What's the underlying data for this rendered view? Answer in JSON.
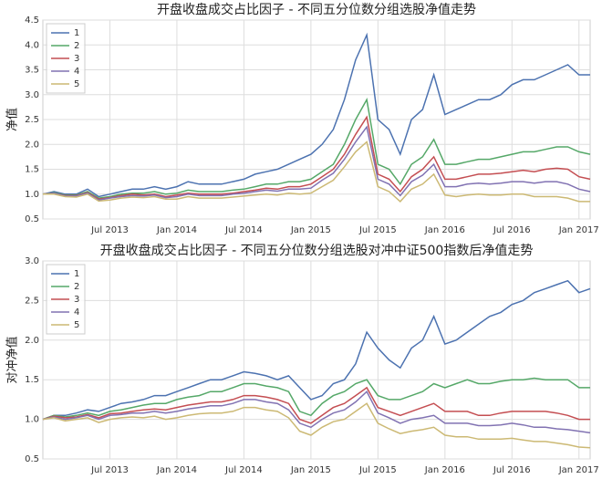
{
  "chart_data": [
    {
      "type": "line",
      "title": "开盘收盘成交占比因子 - 不同五分位数分组选股净值走势",
      "ylabel": "净值",
      "x": [
        "2013-01",
        "2013-02",
        "2013-03",
        "2013-04",
        "2013-05",
        "2013-06",
        "2013-07",
        "2013-08",
        "2013-09",
        "2013-10",
        "2013-11",
        "2013-12",
        "2014-01",
        "2014-02",
        "2014-03",
        "2014-04",
        "2014-05",
        "2014-06",
        "2014-07",
        "2014-08",
        "2014-09",
        "2014-10",
        "2014-11",
        "2014-12",
        "2015-01",
        "2015-02",
        "2015-03",
        "2015-04",
        "2015-05",
        "2015-06",
        "2015-07",
        "2015-08",
        "2015-09",
        "2015-10",
        "2015-11",
        "2015-12",
        "2016-01",
        "2016-02",
        "2016-03",
        "2016-04",
        "2016-05",
        "2016-06",
        "2016-07",
        "2016-08",
        "2016-09",
        "2016-10",
        "2016-11",
        "2016-12",
        "2017-01",
        "2017-02"
      ],
      "xlim": [
        "2013-01",
        "2017-02"
      ],
      "xticks": [
        {
          "value": "2013-07",
          "label": "Jul 2013"
        },
        {
          "value": "2014-01",
          "label": "Jan 2014"
        },
        {
          "value": "2014-07",
          "label": "Jul 2014"
        },
        {
          "value": "2015-01",
          "label": "Jan 2015"
        },
        {
          "value": "2015-07",
          "label": "Jul 2015"
        },
        {
          "value": "2016-01",
          "label": "Jan 2016"
        },
        {
          "value": "2016-07",
          "label": "Jul 2016"
        },
        {
          "value": "2017-01",
          "label": "Jan 2017"
        }
      ],
      "ylim": [
        0.5,
        4.5
      ],
      "yticks": [
        0.5,
        {
          "value": 1,
          "label": "1.0"
        },
        1.5,
        {
          "value": 2,
          "label": "2.0"
        },
        2.5,
        {
          "value": 3,
          "label": "3.0"
        },
        3.5,
        {
          "value": 4,
          "label": "4.0"
        },
        4.5
      ],
      "grid": true,
      "legend": "upper left",
      "series": [
        {
          "name": "1",
          "color": "#4c72b0",
          "values": [
            1.0,
            1.05,
            1.0,
            1.0,
            1.1,
            0.95,
            1.0,
            1.05,
            1.1,
            1.1,
            1.15,
            1.1,
            1.15,
            1.25,
            1.2,
            1.2,
            1.2,
            1.25,
            1.3,
            1.4,
            1.45,
            1.5,
            1.6,
            1.7,
            1.8,
            2.0,
            2.3,
            2.9,
            3.7,
            4.2,
            2.5,
            2.3,
            1.8,
            2.5,
            2.7,
            3.4,
            2.6,
            2.7,
            2.8,
            2.9,
            2.9,
            3.0,
            3.2,
            3.3,
            3.3,
            3.4,
            3.5,
            3.6,
            3.4,
            3.4
          ]
        },
        {
          "name": "2",
          "color": "#55a868",
          "values": [
            1.0,
            1.03,
            0.98,
            0.98,
            1.05,
            0.92,
            0.95,
            1.0,
            1.02,
            1.02,
            1.05,
            1.0,
            1.02,
            1.08,
            1.05,
            1.05,
            1.05,
            1.08,
            1.1,
            1.15,
            1.2,
            1.2,
            1.25,
            1.25,
            1.3,
            1.45,
            1.6,
            2.0,
            2.5,
            2.9,
            1.6,
            1.5,
            1.2,
            1.6,
            1.75,
            2.1,
            1.6,
            1.6,
            1.65,
            1.7,
            1.7,
            1.75,
            1.8,
            1.85,
            1.85,
            1.9,
            1.95,
            1.95,
            1.85,
            1.8
          ]
        },
        {
          "name": "3",
          "color": "#c44e52",
          "values": [
            1.0,
            1.02,
            0.97,
            0.97,
            1.03,
            0.9,
            0.93,
            0.97,
            1.0,
            0.98,
            1.0,
            0.95,
            0.98,
            1.02,
            1.0,
            1.0,
            1.0,
            1.02,
            1.05,
            1.08,
            1.12,
            1.1,
            1.15,
            1.15,
            1.2,
            1.35,
            1.5,
            1.8,
            2.2,
            2.55,
            1.4,
            1.3,
            1.05,
            1.35,
            1.5,
            1.75,
            1.3,
            1.3,
            1.35,
            1.4,
            1.4,
            1.42,
            1.45,
            1.48,
            1.45,
            1.5,
            1.52,
            1.5,
            1.35,
            1.3
          ]
        },
        {
          "name": "4",
          "color": "#8172b2",
          "values": [
            1.0,
            1.02,
            0.96,
            0.96,
            1.02,
            0.88,
            0.92,
            0.95,
            0.97,
            0.96,
            0.98,
            0.93,
            0.95,
            1.0,
            0.97,
            0.97,
            0.97,
            1.0,
            1.02,
            1.05,
            1.08,
            1.06,
            1.1,
            1.1,
            1.12,
            1.28,
            1.42,
            1.7,
            2.05,
            2.35,
            1.3,
            1.2,
            0.97,
            1.25,
            1.38,
            1.6,
            1.15,
            1.15,
            1.2,
            1.22,
            1.2,
            1.22,
            1.25,
            1.25,
            1.22,
            1.25,
            1.25,
            1.2,
            1.1,
            1.05
          ]
        },
        {
          "name": "5",
          "color": "#ccb974",
          "values": [
            1.0,
            1.0,
            0.95,
            0.94,
            1.0,
            0.86,
            0.88,
            0.92,
            0.94,
            0.93,
            0.95,
            0.9,
            0.9,
            0.95,
            0.92,
            0.92,
            0.92,
            0.94,
            0.96,
            0.98,
            1.0,
            0.98,
            1.02,
            1.0,
            1.02,
            1.15,
            1.28,
            1.55,
            1.85,
            2.05,
            1.15,
            1.05,
            0.85,
            1.1,
            1.2,
            1.4,
            0.98,
            0.95,
            0.98,
            1.0,
            0.98,
            0.98,
            1.0,
            1.0,
            0.95,
            0.95,
            0.95,
            0.92,
            0.85,
            0.85
          ]
        }
      ]
    },
    {
      "type": "line",
      "title": "开盘收盘成交占比因子 - 不同五分位数分组选股对冲中证500指数后净值走势",
      "ylabel": "对冲净值",
      "x": [
        "2013-01",
        "2013-02",
        "2013-03",
        "2013-04",
        "2013-05",
        "2013-06",
        "2013-07",
        "2013-08",
        "2013-09",
        "2013-10",
        "2013-11",
        "2013-12",
        "2014-01",
        "2014-02",
        "2014-03",
        "2014-04",
        "2014-05",
        "2014-06",
        "2014-07",
        "2014-08",
        "2014-09",
        "2014-10",
        "2014-11",
        "2014-12",
        "2015-01",
        "2015-02",
        "2015-03",
        "2015-04",
        "2015-05",
        "2015-06",
        "2015-07",
        "2015-08",
        "2015-09",
        "2015-10",
        "2015-11",
        "2015-12",
        "2016-01",
        "2016-02",
        "2016-03",
        "2016-04",
        "2016-05",
        "2016-06",
        "2016-07",
        "2016-08",
        "2016-09",
        "2016-10",
        "2016-11",
        "2016-12",
        "2017-01",
        "2017-02"
      ],
      "xlim": [
        "2013-01",
        "2017-02"
      ],
      "xticks": [
        {
          "value": "2013-07",
          "label": "Jul 2013"
        },
        {
          "value": "2014-01",
          "label": "Jan 2014"
        },
        {
          "value": "2014-07",
          "label": "Jul 2014"
        },
        {
          "value": "2015-01",
          "label": "Jan 2015"
        },
        {
          "value": "2015-07",
          "label": "Jul 2015"
        },
        {
          "value": "2016-01",
          "label": "Jan 2016"
        },
        {
          "value": "2016-07",
          "label": "Jul 2016"
        },
        {
          "value": "2017-01",
          "label": "Jan 2017"
        }
      ],
      "ylim": [
        0.5,
        3.0
      ],
      "yticks": [
        0.5,
        {
          "value": 1,
          "label": "1.0"
        },
        1.5,
        {
          "value": 2,
          "label": "2.0"
        },
        2.5,
        {
          "value": 3,
          "label": "3.0"
        }
      ],
      "grid": true,
      "legend": "upper left",
      "series": [
        {
          "name": "1",
          "color": "#4c72b0",
          "values": [
            1.0,
            1.05,
            1.05,
            1.08,
            1.12,
            1.1,
            1.15,
            1.2,
            1.22,
            1.25,
            1.3,
            1.3,
            1.35,
            1.4,
            1.45,
            1.5,
            1.5,
            1.55,
            1.6,
            1.58,
            1.55,
            1.5,
            1.55,
            1.4,
            1.25,
            1.3,
            1.45,
            1.5,
            1.7,
            2.1,
            1.9,
            1.75,
            1.65,
            1.9,
            2.0,
            2.3,
            1.95,
            2.0,
            2.1,
            2.2,
            2.3,
            2.35,
            2.45,
            2.5,
            2.6,
            2.65,
            2.7,
            2.75,
            2.6,
            2.65
          ]
        },
        {
          "name": "2",
          "color": "#55a868",
          "values": [
            1.0,
            1.05,
            1.03,
            1.05,
            1.08,
            1.05,
            1.1,
            1.12,
            1.15,
            1.18,
            1.2,
            1.2,
            1.25,
            1.28,
            1.3,
            1.35,
            1.35,
            1.4,
            1.45,
            1.45,
            1.42,
            1.4,
            1.35,
            1.1,
            1.05,
            1.2,
            1.3,
            1.35,
            1.45,
            1.5,
            1.3,
            1.25,
            1.25,
            1.3,
            1.35,
            1.45,
            1.4,
            1.45,
            1.5,
            1.45,
            1.45,
            1.48,
            1.5,
            1.5,
            1.52,
            1.5,
            1.5,
            1.5,
            1.4,
            1.4
          ]
        },
        {
          "name": "3",
          "color": "#c44e52",
          "values": [
            1.0,
            1.04,
            1.02,
            1.03,
            1.06,
            1.02,
            1.07,
            1.08,
            1.1,
            1.12,
            1.13,
            1.12,
            1.15,
            1.18,
            1.2,
            1.22,
            1.22,
            1.25,
            1.3,
            1.3,
            1.28,
            1.25,
            1.2,
            1.0,
            0.95,
            1.05,
            1.15,
            1.2,
            1.3,
            1.4,
            1.15,
            1.1,
            1.05,
            1.1,
            1.15,
            1.2,
            1.1,
            1.1,
            1.1,
            1.05,
            1.05,
            1.08,
            1.1,
            1.1,
            1.1,
            1.1,
            1.08,
            1.05,
            1.0,
            1.0
          ]
        },
        {
          "name": "4",
          "color": "#8172b2",
          "values": [
            1.0,
            1.03,
            1.0,
            1.02,
            1.05,
            1.0,
            1.05,
            1.06,
            1.08,
            1.08,
            1.1,
            1.08,
            1.1,
            1.13,
            1.15,
            1.17,
            1.17,
            1.2,
            1.25,
            1.25,
            1.22,
            1.2,
            1.12,
            0.95,
            0.9,
            1.0,
            1.08,
            1.12,
            1.22,
            1.35,
            1.08,
            1.02,
            0.95,
            1.0,
            1.02,
            1.05,
            0.95,
            0.95,
            0.95,
            0.92,
            0.92,
            0.93,
            0.95,
            0.93,
            0.9,
            0.9,
            0.88,
            0.87,
            0.85,
            0.83
          ]
        },
        {
          "name": "5",
          "color": "#ccb974",
          "values": [
            1.0,
            1.02,
            0.98,
            1.0,
            1.02,
            0.96,
            1.0,
            1.02,
            1.03,
            1.02,
            1.04,
            1.0,
            1.02,
            1.05,
            1.07,
            1.08,
            1.08,
            1.1,
            1.15,
            1.15,
            1.12,
            1.1,
            1.02,
            0.85,
            0.8,
            0.9,
            0.97,
            1.0,
            1.1,
            1.2,
            0.95,
            0.88,
            0.82,
            0.85,
            0.87,
            0.9,
            0.8,
            0.78,
            0.78,
            0.75,
            0.75,
            0.75,
            0.76,
            0.74,
            0.72,
            0.72,
            0.7,
            0.68,
            0.65,
            0.64
          ]
        }
      ]
    }
  ]
}
